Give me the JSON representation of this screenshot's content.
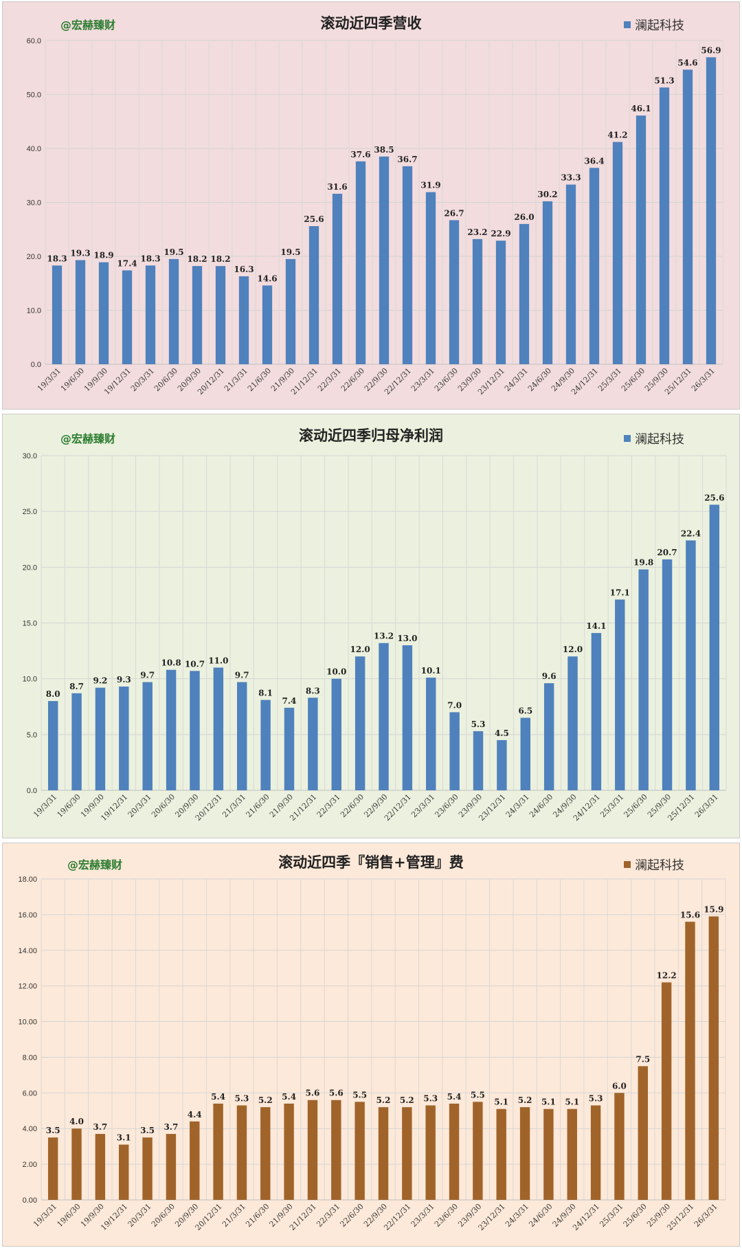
{
  "charts": [
    {
      "watermark": "@宏赫臻财",
      "background": "#f2dcdd",
      "bar_color": "#4f81bd",
      "chart_data": {
        "type": "bar",
        "title": "滚动近四季营收",
        "categories": [
          "19/3/31",
          "19/6/30",
          "19/9/30",
          "19/12/31",
          "20/3/31",
          "20/6/30",
          "20/9/30",
          "20/12/31",
          "21/3/31",
          "21/6/30",
          "21/9/30",
          "21/12/31",
          "22/3/31",
          "22/6/30",
          "22/9/30",
          "22/12/31",
          "23/3/31",
          "23/6/30",
          "23/9/30",
          "23/12/31",
          "24/3/31",
          "24/6/30",
          "24/9/30",
          "24/12/31",
          "25/3/31",
          "25/6/30",
          "25/9/30",
          "25/12/31",
          "26/3/31"
        ],
        "series": [
          {
            "name": "澜起科技",
            "values": [
              18.3,
              19.3,
              18.9,
              17.4,
              18.3,
              19.5,
              18.2,
              18.2,
              16.3,
              14.6,
              19.5,
              25.6,
              31.6,
              37.6,
              38.5,
              36.7,
              31.9,
              26.7,
              23.2,
              22.9,
              26.0,
              30.2,
              33.3,
              36.4,
              41.2,
              46.1,
              51.3,
              54.6,
              56.9
            ],
            "labels": [
              "18.3",
              "19.3",
              "18.9",
              "17.4",
              "18.3",
              "19.5",
              "18.2",
              "18.2",
              "16.3",
              "14.6",
              "19.5",
              "25.6",
              "31.6",
              "37.6",
              "38.5",
              "36.7",
              "31.9",
              "26.7",
              "23.2",
              "22.9",
              "26.0",
              "30.2",
              "33.3",
              "36.4",
              "41.2",
              "46.1",
              "51.3",
              "54.6",
              "56.9"
            ]
          }
        ],
        "yticks": [
          "0.0",
          "10.0",
          "20.0",
          "30.0",
          "40.0",
          "50.0",
          "60.0"
        ],
        "ylim": [
          0,
          60
        ],
        "grid": true,
        "legend": "top-right"
      }
    },
    {
      "watermark": "@宏赫臻财",
      "background": "#ebf1de",
      "bar_color": "#4f81bd",
      "chart_data": {
        "type": "bar",
        "title": "滚动近四季归母净利润",
        "categories": [
          "19/3/31",
          "19/6/30",
          "19/9/30",
          "19/12/31",
          "20/3/31",
          "20/6/30",
          "20/9/30",
          "20/12/31",
          "21/3/31",
          "21/6/30",
          "21/9/30",
          "21/12/31",
          "22/3/31",
          "22/6/30",
          "22/9/30",
          "22/12/31",
          "23/3/31",
          "23/6/30",
          "23/9/30",
          "23/12/31",
          "24/3/31",
          "24/6/30",
          "24/9/30",
          "24/12/31",
          "25/3/31",
          "25/6/30",
          "25/9/30",
          "25/12/31",
          "26/3/31"
        ],
        "series": [
          {
            "name": "澜起科技",
            "values": [
              8.0,
              8.7,
              9.2,
              9.3,
              9.7,
              10.8,
              10.7,
              11.0,
              9.7,
              8.1,
              7.4,
              8.3,
              10.0,
              12.0,
              13.2,
              13.0,
              10.1,
              7.0,
              5.3,
              4.5,
              6.5,
              9.6,
              12.0,
              14.1,
              17.1,
              19.8,
              20.7,
              22.4,
              25.6
            ],
            "labels": [
              "8.0",
              "8.7",
              "9.2",
              "9.3",
              "9.7",
              "10.8",
              "10.7",
              "11.0",
              "9.7",
              "8.1",
              "7.4",
              "8.3",
              "10.0",
              "12.0",
              "13.2",
              "13.0",
              "10.1",
              "7.0",
              "5.3",
              "4.5",
              "6.5",
              "9.6",
              "12.0",
              "14.1",
              "17.1",
              "19.8",
              "20.7",
              "22.4",
              "25.6"
            ]
          }
        ],
        "yticks": [
          "0.0",
          "5.0",
          "10.0",
          "15.0",
          "20.0",
          "25.0",
          "30.0"
        ],
        "ylim": [
          0,
          30
        ],
        "grid": true,
        "legend": "top-right"
      }
    },
    {
      "watermark": "@宏赫臻财",
      "background": "#fde9d9",
      "bar_color": "#a0642b",
      "chart_data": {
        "type": "bar",
        "title": "滚动近四季『销售+管理』费",
        "categories": [
          "19/3/31",
          "19/6/30",
          "19/9/30",
          "19/12/31",
          "20/3/31",
          "20/6/30",
          "20/9/30",
          "20/12/31",
          "21/3/31",
          "21/6/30",
          "21/9/30",
          "21/12/31",
          "22/3/31",
          "22/6/30",
          "22/9/30",
          "22/12/31",
          "23/3/31",
          "23/6/30",
          "23/9/30",
          "23/12/31",
          "24/3/31",
          "24/6/30",
          "24/9/30",
          "24/12/31",
          "25/3/31",
          "25/6/30",
          "25/9/30",
          "25/12/31",
          "26/3/31"
        ],
        "series": [
          {
            "name": "澜起科技",
            "values": [
              3.5,
              4.0,
              3.7,
              3.1,
              3.5,
              3.7,
              4.4,
              5.4,
              5.3,
              5.2,
              5.4,
              5.6,
              5.6,
              5.5,
              5.2,
              5.2,
              5.3,
              5.4,
              5.5,
              5.1,
              5.2,
              5.1,
              5.1,
              5.3,
              6.0,
              7.5,
              12.2,
              15.6,
              15.9
            ],
            "labels": [
              "3.5",
              "4.0",
              "3.7",
              "3.1",
              "3.5",
              "3.7",
              "4.4",
              "5.4",
              "5.3",
              "5.2",
              "5.4",
              "5.6",
              "5.6",
              "5.5",
              "5.2",
              "5.2",
              "5.3",
              "5.4",
              "5.5",
              "5.1",
              "5.2",
              "5.1",
              "5.1",
              "5.3",
              "6.0",
              "7.5",
              "12.2",
              "15.6",
              "15.9"
            ]
          }
        ],
        "yticks": [
          "0.00",
          "2.00",
          "4.00",
          "6.00",
          "8.00",
          "10.00",
          "12.00",
          "14.00",
          "16.00",
          "18.00"
        ],
        "ylim": [
          0,
          18
        ],
        "grid": true,
        "legend": "top-right"
      }
    }
  ]
}
